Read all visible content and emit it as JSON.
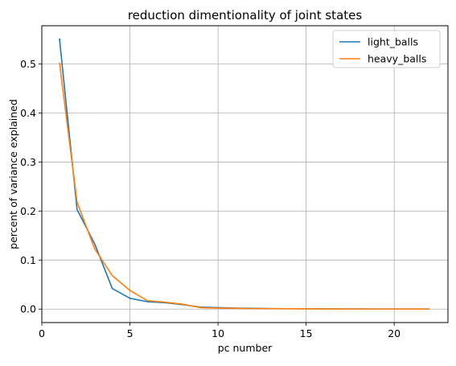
{
  "chart_data": {
    "type": "line",
    "title": "reduction dimentionality of joint states",
    "xlabel": "pc number",
    "ylabel": "percent of variance explained",
    "xlim": [
      0.0,
      23.05
    ],
    "ylim": [
      -0.0275,
      0.578
    ],
    "xticks": [
      0,
      5,
      10,
      15,
      20
    ],
    "yticks": [
      0.0,
      0.1,
      0.2,
      0.3,
      0.4,
      0.5
    ],
    "xtick_labels": [
      "0",
      "5",
      "10",
      "15",
      "20"
    ],
    "ytick_labels": [
      "0.0",
      "0.1",
      "0.2",
      "0.3",
      "0.4",
      "0.5"
    ],
    "grid": true,
    "legend_position": "upper right",
    "x": [
      1,
      2,
      3,
      4,
      5,
      6,
      7,
      8,
      9,
      10,
      11,
      12,
      13,
      14,
      15,
      16,
      17,
      18,
      19,
      20,
      21,
      22
    ],
    "series": [
      {
        "name": "light_balls",
        "color": "#1f77b4",
        "values": [
          0.552,
          0.203,
          0.133,
          0.042,
          0.022,
          0.015,
          0.013,
          0.009,
          0.004,
          0.003,
          0.002,
          0.0015,
          0.001,
          0.0008,
          0.0006,
          0.0005,
          0.0004,
          0.0003,
          0.0002,
          0.0001,
          0.0001,
          0.0001
        ]
      },
      {
        "name": "heavy_balls",
        "color": "#ff7f0e",
        "values": [
          0.503,
          0.218,
          0.123,
          0.068,
          0.038,
          0.017,
          0.014,
          0.01,
          0.003,
          0.002,
          0.0015,
          0.001,
          0.0009,
          0.0007,
          0.0005,
          0.0004,
          0.0003,
          0.0002,
          0.0002,
          0.0001,
          0.0001,
          0.0001
        ]
      }
    ]
  }
}
